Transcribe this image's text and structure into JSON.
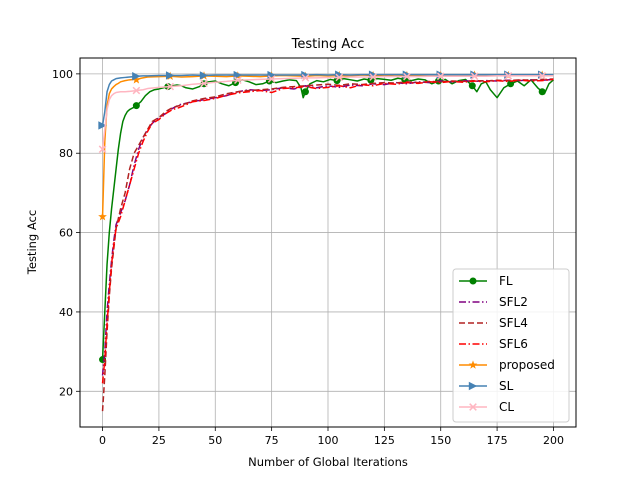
{
  "chart_data": {
    "type": "line",
    "title": "Testing Acc",
    "xlabel": "Number of Global Iterations",
    "ylabel": "Testing Acc",
    "xlim": [
      -10,
      210
    ],
    "ylim": [
      11,
      104
    ],
    "xticks": [
      0,
      25,
      50,
      75,
      100,
      125,
      150,
      175,
      200
    ],
    "yticks": [
      20,
      40,
      60,
      80,
      100
    ],
    "grid": true,
    "legend_position": "lower right",
    "series": [
      {
        "name": "FL",
        "color": "#008000",
        "linestyle": "solid",
        "marker": "circle",
        "markevery": 15,
        "x": [
          0,
          1,
          2,
          3,
          4,
          5,
          6,
          7,
          8,
          9,
          10,
          11,
          12,
          13,
          14,
          15,
          17,
          19,
          21,
          23,
          25,
          27,
          29,
          31,
          33,
          35,
          37,
          40,
          43,
          45,
          47,
          50,
          53,
          56,
          59,
          62,
          65,
          68,
          71,
          74,
          77,
          80,
          83,
          86,
          88,
          89,
          90,
          92,
          95,
          98,
          101,
          104,
          107,
          110,
          113,
          116,
          119,
          122,
          125,
          128,
          131,
          134,
          137,
          140,
          143,
          146,
          149,
          152,
          155,
          158,
          161,
          164,
          166,
          168,
          170,
          172,
          175,
          178,
          181,
          184,
          187,
          190,
          193,
          195,
          196,
          198,
          200
        ],
        "y": [
          28,
          40,
          52,
          60,
          66,
          71,
          76,
          81,
          85,
          88,
          89.5,
          90.5,
          91,
          91.3,
          91.6,
          92,
          93,
          94.5,
          95.5,
          96,
          96.2,
          96.5,
          96.8,
          97,
          97.2,
          97,
          96.5,
          96.2,
          96.8,
          97.5,
          98,
          98.2,
          97.5,
          97,
          97.8,
          98.5,
          98,
          97.3,
          97.5,
          98.2,
          97.8,
          98.2,
          98.5,
          98.3,
          96.5,
          94,
          95.5,
          97.5,
          98.3,
          98,
          98.6,
          98.3,
          98.8,
          98.5,
          98.2,
          98.7,
          98.4,
          98.8,
          98.6,
          98.4,
          98.9,
          98.6,
          98.3,
          98.7,
          98.5,
          97.5,
          98.2,
          98.6,
          97.5,
          98.3,
          98.6,
          97,
          95.5,
          97.5,
          98,
          96,
          94,
          96.5,
          97.5,
          98.2,
          97,
          98.5,
          96.5,
          95.5,
          95,
          97.5,
          98.5
        ]
      },
      {
        "name": "SFL2",
        "color": "#800080",
        "linestyle": "dashdot",
        "marker": "none",
        "x": [
          0,
          1,
          2,
          3,
          4,
          5,
          6,
          8,
          10,
          12,
          14,
          16,
          18,
          20,
          22,
          25,
          28,
          31,
          34,
          37,
          40,
          45,
          50,
          55,
          60,
          65,
          70,
          75,
          80,
          85,
          90,
          95,
          100,
          105,
          110,
          115,
          120,
          125,
          130,
          135,
          140,
          145,
          150,
          155,
          160,
          165,
          170,
          175,
          180,
          185,
          190,
          195,
          200
        ],
        "y": [
          24,
          30,
          40,
          47,
          53,
          58,
          62,
          65,
          68,
          72,
          77,
          81,
          84,
          86,
          87.5,
          89,
          90,
          91.3,
          92.2,
          92.6,
          93,
          93.5,
          94,
          94.5,
          95.5,
          96,
          95.8,
          96,
          96.5,
          96.2,
          97,
          96.5,
          97,
          96.6,
          97.2,
          97,
          97.5,
          97.3,
          97.8,
          97.5,
          98,
          97.8,
          98.2,
          98,
          98.3,
          98.1,
          98.3,
          98.2,
          98.4,
          98.3,
          98.5,
          98.4,
          98.6
        ]
      },
      {
        "name": "SFL4",
        "color": "#b22222",
        "linestyle": "dashed",
        "marker": "none",
        "x": [
          0,
          1,
          2,
          3,
          4,
          5,
          6,
          8,
          10,
          12,
          14,
          16,
          18,
          20,
          22,
          25,
          28,
          31,
          34,
          37,
          40,
          45,
          50,
          55,
          60,
          65,
          70,
          75,
          80,
          85,
          90,
          95,
          100,
          105,
          110,
          115,
          120,
          125,
          130,
          135,
          140,
          145,
          150,
          155,
          160,
          165,
          170,
          175,
          180,
          185,
          190,
          195,
          200
        ],
        "y": [
          15,
          24,
          35,
          44,
          51,
          56,
          61,
          66,
          70,
          76,
          80,
          82,
          84,
          86,
          88,
          89,
          90.5,
          91.5,
          92,
          92.5,
          93.2,
          93.8,
          94.2,
          95,
          95.5,
          95.8,
          96,
          96.2,
          96.6,
          96.8,
          97,
          97.2,
          97.4,
          97.1,
          97.5,
          97.3,
          97.6,
          97.8,
          97.7,
          98,
          97.8,
          98.1,
          98,
          98.2,
          98.1,
          98.3,
          98.2,
          98.4,
          98.3,
          98.5,
          98.4,
          98.6,
          98.7
        ]
      },
      {
        "name": "SFL6",
        "color": "#ff0000",
        "linestyle": "dashdot",
        "marker": "none",
        "x": [
          0,
          1,
          2,
          3,
          4,
          5,
          6,
          8,
          10,
          12,
          14,
          16,
          18,
          20,
          22,
          25,
          28,
          31,
          34,
          37,
          40,
          45,
          50,
          55,
          60,
          65,
          70,
          75,
          80,
          85,
          90,
          95,
          100,
          105,
          110,
          115,
          120,
          125,
          130,
          135,
          140,
          145,
          150,
          155,
          160,
          165,
          170,
          175,
          180,
          185,
          190,
          195,
          200
        ],
        "y": [
          22,
          28,
          37,
          45,
          52,
          57,
          61,
          64,
          68,
          72,
          76,
          80,
          83,
          85.5,
          87.5,
          88.5,
          90,
          91,
          91.5,
          92.2,
          93,
          93.3,
          93.8,
          94.6,
          95.2,
          95.5,
          95.8,
          95.3,
          96.3,
          96.5,
          96.8,
          96.3,
          96.6,
          97,
          96.5,
          97.3,
          97,
          97.6,
          97.4,
          97.8,
          97.6,
          98,
          97.8,
          98.1,
          97.9,
          98.2,
          98,
          98.3,
          98.1,
          98.4,
          98.2,
          98.3,
          98.6
        ]
      },
      {
        "name": "proposed",
        "color": "#ff8c00",
        "linestyle": "solid",
        "marker": "star",
        "markevery": 15,
        "x": [
          0,
          1,
          2,
          3,
          4,
          5,
          6,
          7,
          8,
          10,
          12,
          14,
          15,
          17,
          20,
          25,
          30,
          35,
          40,
          45,
          50,
          55,
          60,
          65,
          70,
          75,
          80,
          85,
          90,
          95,
          100,
          105,
          110,
          115,
          120,
          125,
          130,
          135,
          140,
          145,
          150,
          155,
          160,
          165,
          170,
          175,
          180,
          185,
          190,
          195,
          200
        ],
        "y": [
          64,
          83,
          92,
          95,
          96.2,
          96.8,
          97.3,
          97.6,
          98,
          98.3,
          98.5,
          98.6,
          98.5,
          98.9,
          99.2,
          99.3,
          99.4,
          99.2,
          99.3,
          99.5,
          99.4,
          99.3,
          99.5,
          99.4,
          99.3,
          99.5,
          99.6,
          99.5,
          99.4,
          99.6,
          99.5,
          99.6,
          99.5,
          99.7,
          99.6,
          99.5,
          99.7,
          99.6,
          99.5,
          99.7,
          99.6,
          99.7,
          99.6,
          99.7,
          99.6,
          99.7,
          99.6,
          99.7,
          99.6,
          99.7,
          99.6
        ]
      },
      {
        "name": "SL",
        "color": "#4682b4",
        "linestyle": "solid",
        "marker": "triangle-right",
        "markevery": 15,
        "x": [
          0,
          1,
          2,
          3,
          4,
          5,
          6,
          8,
          10,
          12,
          14,
          15,
          18,
          20,
          25,
          30,
          35,
          40,
          45,
          50,
          55,
          60,
          65,
          70,
          75,
          80,
          85,
          90,
          95,
          100,
          105,
          110,
          115,
          120,
          125,
          130,
          135,
          140,
          145,
          150,
          155,
          160,
          165,
          170,
          175,
          180,
          185,
          190,
          195,
          200
        ],
        "y": [
          87,
          90.5,
          95.5,
          97.3,
          98.2,
          98.5,
          98.8,
          99,
          99.1,
          99.2,
          99.3,
          99.4,
          99.5,
          99.5,
          99.6,
          99.6,
          99.6,
          99.7,
          99.6,
          99.7,
          99.7,
          99.7,
          99.7,
          99.7,
          99.7,
          99.7,
          99.7,
          99.7,
          99.8,
          99.7,
          99.8,
          99.7,
          99.8,
          99.8,
          99.8,
          99.8,
          99.8,
          99.8,
          99.8,
          99.8,
          99.8,
          99.8,
          99.8,
          99.8,
          99.8,
          99.8,
          99.8,
          99.8,
          99.8,
          99.8
        ]
      },
      {
        "name": "CL",
        "color": "#ffb6c1",
        "linestyle": "solid",
        "marker": "x",
        "markevery": 15,
        "x": [
          0,
          1,
          2,
          3,
          4,
          5,
          6,
          8,
          10,
          12,
          14,
          15,
          18,
          20,
          25,
          30,
          35,
          40,
          45,
          50,
          55,
          60,
          65,
          70,
          75,
          80,
          85,
          90,
          95,
          100,
          105,
          110,
          115,
          120,
          125,
          130,
          135,
          140,
          145,
          150,
          155,
          160,
          165,
          170,
          175,
          180,
          185,
          190,
          195,
          200
        ],
        "y": [
          81,
          86,
          91,
          93.5,
          94.5,
          95,
          95.3,
          95.5,
          95.5,
          95.6,
          95.7,
          95.8,
          96,
          96.3,
          96.6,
          96.8,
          97,
          97.4,
          97.6,
          97.9,
          98.1,
          98.4,
          98.5,
          98.6,
          98.7,
          98.8,
          98.9,
          99,
          99,
          99.1,
          99.1,
          99.2,
          99.2,
          99.2,
          99.3,
          99.3,
          99.3,
          99.3,
          99.4,
          99.4,
          99.4,
          99.4,
          99.4,
          99.4,
          99.5,
          99.5,
          99.5,
          99.5,
          99.5,
          99.5
        ]
      }
    ]
  }
}
